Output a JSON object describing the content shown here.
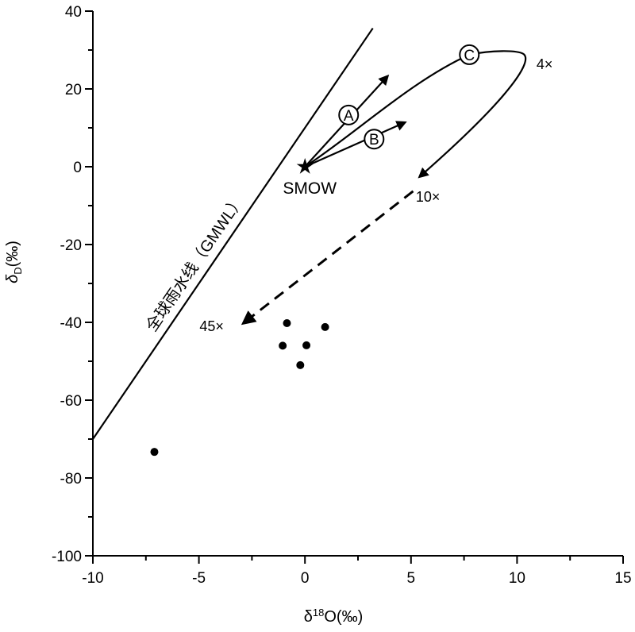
{
  "chart_data": {
    "type": "scatter",
    "xlabel": "δ18O(‰)",
    "xlabel_parts": {
      "delta": "δ",
      "sup": "18",
      "rest": "O(‰)"
    },
    "ylabel": "δD(‰)",
    "ylabel_parts": {
      "delta": "δ",
      "sub": "D",
      "rest": "(‰)"
    },
    "xlim": [
      -10,
      15
    ],
    "ylim": [
      -100,
      40
    ],
    "xticks": [
      -10,
      -5,
      0,
      5,
      10,
      15
    ],
    "yticks": [
      40,
      20,
      0,
      -20,
      -40,
      -60,
      -80,
      -100
    ],
    "points": [
      {
        "x": -7.1,
        "y": -73.3
      },
      {
        "x": -0.85,
        "y": -40.2
      },
      {
        "x": -1.05,
        "y": -46.0
      },
      {
        "x": 0.07,
        "y": -45.9
      },
      {
        "x": 0.95,
        "y": -41.2
      },
      {
        "x": -0.22,
        "y": -51.0
      }
    ],
    "gmwl": {
      "label": "全球雨水线（GMWL）",
      "slope": 8,
      "intercept": 10,
      "x_range": [
        -10,
        3.2
      ]
    },
    "reference": {
      "label": "SMOW",
      "x": 0,
      "y": 0
    },
    "paths": [
      {
        "name": "A",
        "label": "A",
        "to": [
          3.9,
          23.3
        ],
        "label_at": [
          2.06,
          13.3
        ]
      },
      {
        "name": "B",
        "label": "B",
        "to": [
          4.72,
          11.4
        ],
        "label_at": [
          3.26,
          7.1
        ]
      },
      {
        "name": "C",
        "label": "C",
        "label_at": [
          7.75,
          28.8
        ]
      }
    ],
    "enrichment_labels": [
      {
        "text": "4×",
        "x": 11.3,
        "y": 26.5
      },
      {
        "text": "10×",
        "x": 5.8,
        "y": -7.5
      },
      {
        "text": "45×",
        "x": -4.4,
        "y": -40.8
      }
    ],
    "grid": false
  }
}
